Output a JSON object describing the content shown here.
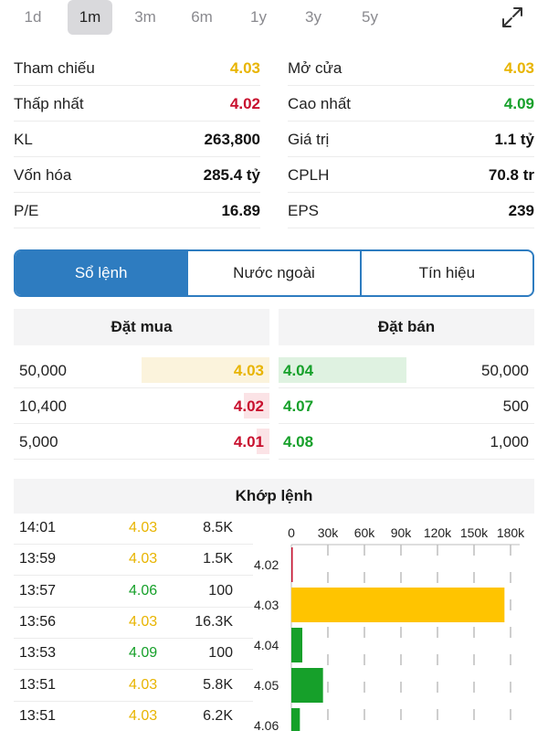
{
  "ranges": [
    "1d",
    "1m",
    "3m",
    "6m",
    "1y",
    "3y",
    "5y"
  ],
  "active_range": "1m",
  "stats": {
    "left": [
      {
        "label": "Tham chiếu",
        "value": "4.03",
        "color": "#e8b400"
      },
      {
        "label": "Thấp nhất",
        "value": "4.02",
        "color": "#c8102e"
      },
      {
        "label": "KL",
        "value": "263,800",
        "color": "#111111"
      },
      {
        "label": "Vốn hóa",
        "value": "285.4 tỷ",
        "color": "#111111"
      },
      {
        "label": "P/E",
        "value": "16.89",
        "color": "#111111"
      }
    ],
    "right": [
      {
        "label": "Mở cửa",
        "value": "4.03",
        "color": "#e8b400"
      },
      {
        "label": "Cao nhất",
        "value": "4.09",
        "color": "#16a02a"
      },
      {
        "label": "Giá trị",
        "value": "1.1 tỷ",
        "color": "#111111"
      },
      {
        "label": "CPLH",
        "value": "70.8 tr",
        "color": "#111111"
      },
      {
        "label": "EPS",
        "value": "239",
        "color": "#111111"
      }
    ]
  },
  "tabs": [
    "Sổ lệnh",
    "Nước ngoài",
    "Tín hiệu"
  ],
  "active_tab": "Sổ lệnh",
  "orderbook": {
    "buy_header": "Đặt mua",
    "sell_header": "Đặt bán",
    "rows": [
      {
        "buy_vol": "50,000",
        "buy_price": "4.03",
        "buy_color": "#e8b400",
        "buy_bg": "#fbf3dc",
        "buy_fill": 0.5,
        "sell_price": "4.04",
        "sell_color": "#16a02a",
        "sell_bg": "#dff2e1",
        "sell_fill": 0.5,
        "sell_vol": "50,000"
      },
      {
        "buy_vol": "10,400",
        "buy_price": "4.02",
        "buy_color": "#c8102e",
        "buy_bg": "#fbe3e6",
        "buy_fill": 0.1,
        "sell_price": "4.07",
        "sell_color": "#16a02a",
        "sell_bg": "#dff2e1",
        "sell_fill": 0.0,
        "sell_vol": "500"
      },
      {
        "buy_vol": "5,000",
        "buy_price": "4.01",
        "buy_color": "#c8102e",
        "buy_bg": "#fbe3e6",
        "buy_fill": 0.05,
        "sell_price": "4.08",
        "sell_color": "#16a02a",
        "sell_bg": "#dff2e1",
        "sell_fill": 0.0,
        "sell_vol": "1,000"
      }
    ]
  },
  "matched": {
    "header": "Khớp lệnh",
    "trades": [
      {
        "time": "14:01",
        "price": "4.03",
        "color": "#e8b400",
        "vol": "8.5K"
      },
      {
        "time": "13:59",
        "price": "4.03",
        "color": "#e8b400",
        "vol": "1.5K"
      },
      {
        "time": "13:57",
        "price": "4.06",
        "color": "#16a02a",
        "vol": "100"
      },
      {
        "time": "13:56",
        "price": "4.03",
        "color": "#e8b400",
        "vol": "16.3K"
      },
      {
        "time": "13:53",
        "price": "4.09",
        "color": "#16a02a",
        "vol": "100"
      },
      {
        "time": "13:51",
        "price": "4.03",
        "color": "#e8b400",
        "vol": "5.8K"
      },
      {
        "time": "13:51",
        "price": "4.03",
        "color": "#e8b400",
        "vol": "6.2K"
      }
    ]
  },
  "chart_data": {
    "type": "bar",
    "orientation": "horizontal",
    "categories": [
      "4.02",
      "4.03",
      "4.04",
      "4.05",
      "4.06"
    ],
    "values": [
      800,
      175000,
      9000,
      26000,
      7000
    ],
    "colors": [
      "#c8102e",
      "#ffc400",
      "#16a02a",
      "#16a02a",
      "#16a02a"
    ],
    "xticks": [
      "0",
      "30k",
      "60k",
      "90k",
      "120k",
      "150k",
      "180k"
    ],
    "xlim": [
      0,
      180000
    ],
    "grid": true
  }
}
